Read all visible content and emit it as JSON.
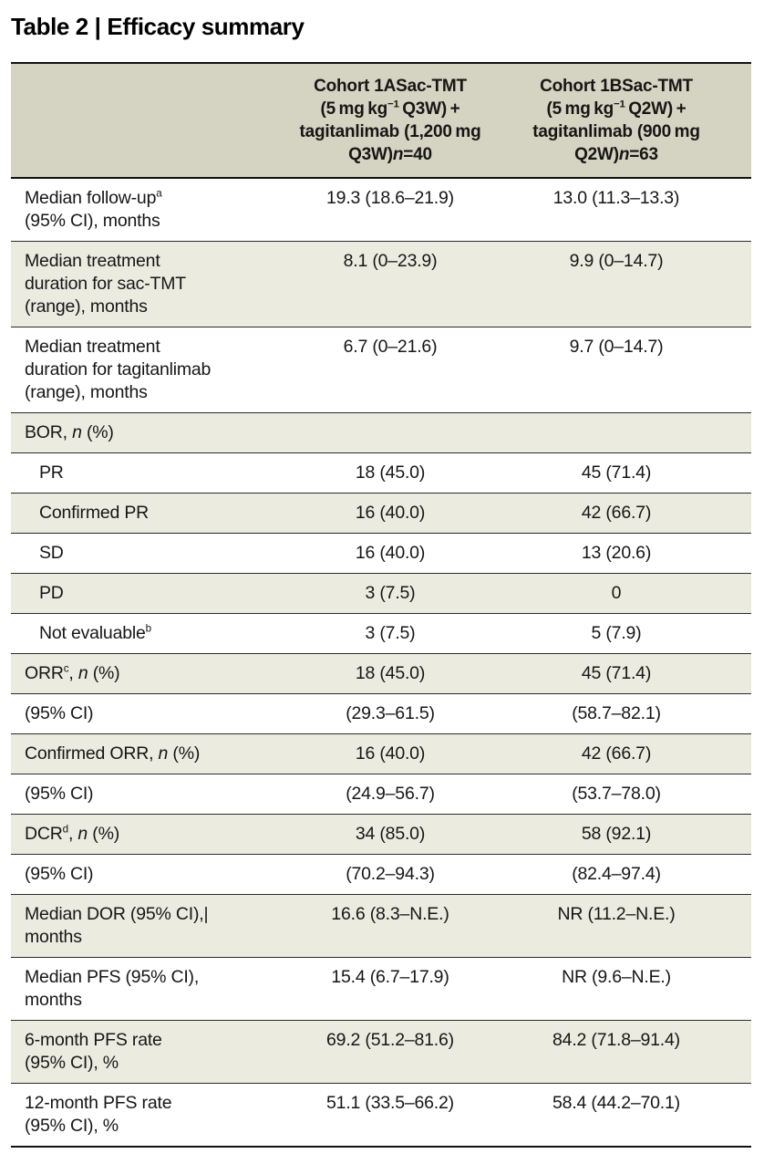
{
  "title": {
    "text": "Table 2 | Efficacy summary"
  },
  "colors": {
    "header_bg": "#d5d3c1",
    "shaded_row_bg": "#ecebe0",
    "rule": "#111111",
    "rule_thin": "#2b2b2b",
    "text": "#161616"
  },
  "table": {
    "header": {
      "col1": "",
      "cohort_1a": [
        {
          "t": "Cohort 1ASac-TMT"
        },
        {
          "br": true
        },
        {
          "t": "(5 mg kg"
        },
        {
          "t": "−1",
          "sup": true
        },
        {
          "t": " Q3W) +"
        },
        {
          "br": true
        },
        {
          "t": "tagitanlimab (1,200 mg"
        },
        {
          "br": true
        },
        {
          "t": "Q3W)"
        },
        {
          "t": "n",
          "i": true
        },
        {
          "t": "=40"
        }
      ],
      "cohort_1b": [
        {
          "t": "Cohort 1BSac-TMT"
        },
        {
          "br": true
        },
        {
          "t": "(5 mg kg"
        },
        {
          "t": "−1",
          "sup": true
        },
        {
          "t": " Q2W) +"
        },
        {
          "br": true
        },
        {
          "t": "tagitanlimab (900 mg"
        },
        {
          "br": true
        },
        {
          "t": "Q2W)"
        },
        {
          "t": "n",
          "i": true
        },
        {
          "t": "=63"
        }
      ]
    },
    "rows": [
      {
        "key": "median-follow-up",
        "shaded": false,
        "indent": false,
        "label": [
          {
            "t": "Median follow-up"
          },
          {
            "t": "a",
            "sup": true
          },
          {
            "br": true
          },
          {
            "t": "(95% CI), months"
          }
        ],
        "values": [
          "19.3 (18.6–21.9)",
          "13.0 (11.3–13.3)"
        ]
      },
      {
        "key": "median-treatment-duration-sac-tmt",
        "shaded": true,
        "indent": false,
        "label": [
          {
            "t": "Median treatment"
          },
          {
            "br": true
          },
          {
            "t": "duration for sac-TMT"
          },
          {
            "br": true
          },
          {
            "t": "(range), months"
          }
        ],
        "values": [
          "8.1 (0–23.9)",
          "9.9 (0–14.7)"
        ]
      },
      {
        "key": "median-treatment-duration-tagitanlimab",
        "shaded": false,
        "indent": false,
        "label": [
          {
            "t": "Median treatment"
          },
          {
            "br": true
          },
          {
            "t": "duration for tagitanlimab"
          },
          {
            "br": true
          },
          {
            "t": "(range), months"
          }
        ],
        "values": [
          "6.7 (0–21.6)",
          "9.7 (0–14.7)"
        ]
      },
      {
        "key": "bor",
        "shaded": true,
        "indent": false,
        "label": [
          {
            "t": "BOR, "
          },
          {
            "t": "n",
            "i": true
          },
          {
            "t": " (%)"
          }
        ],
        "values": [
          "",
          ""
        ]
      },
      {
        "key": "pr",
        "shaded": false,
        "indent": true,
        "label": [
          {
            "t": "PR"
          }
        ],
        "values": [
          "18 (45.0)",
          "45 (71.4)"
        ]
      },
      {
        "key": "confirmed-pr",
        "shaded": true,
        "indent": true,
        "label": [
          {
            "t": "Confirmed PR"
          }
        ],
        "values": [
          "16 (40.0)",
          "42 (66.7)"
        ]
      },
      {
        "key": "sd",
        "shaded": false,
        "indent": true,
        "label": [
          {
            "t": "SD"
          }
        ],
        "values": [
          "16 (40.0)",
          "13 (20.6)"
        ]
      },
      {
        "key": "pd",
        "shaded": true,
        "indent": true,
        "label": [
          {
            "t": "PD"
          }
        ],
        "values": [
          "3 (7.5)",
          "0"
        ]
      },
      {
        "key": "not-evaluable",
        "shaded": false,
        "indent": true,
        "label": [
          {
            "t": "Not evaluable"
          },
          {
            "t": "b",
            "sup": true
          }
        ],
        "values": [
          "3 (7.5)",
          "5 (7.9)"
        ]
      },
      {
        "key": "orr",
        "shaded": true,
        "indent": false,
        "label": [
          {
            "t": "ORR"
          },
          {
            "t": "c",
            "sup": true
          },
          {
            "t": ", "
          },
          {
            "t": "n",
            "i": true
          },
          {
            "t": " (%)"
          }
        ],
        "values": [
          "18 (45.0)",
          "45 (71.4)"
        ]
      },
      {
        "key": "orr-ci",
        "shaded": false,
        "indent": false,
        "label": [
          {
            "t": "(95% CI)"
          }
        ],
        "values": [
          "(29.3–61.5)",
          "(58.7–82.1)"
        ]
      },
      {
        "key": "confirmed-orr",
        "shaded": true,
        "indent": false,
        "label": [
          {
            "t": "Confirmed ORR, "
          },
          {
            "t": "n",
            "i": true
          },
          {
            "t": " (%)"
          }
        ],
        "values": [
          "16 (40.0)",
          "42 (66.7)"
        ]
      },
      {
        "key": "confirmed-orr-ci",
        "shaded": false,
        "indent": false,
        "label": [
          {
            "t": "(95% CI)"
          }
        ],
        "values": [
          "(24.9–56.7)",
          "(53.7–78.0)"
        ]
      },
      {
        "key": "dcr",
        "shaded": true,
        "indent": false,
        "label": [
          {
            "t": "DCR"
          },
          {
            "t": "d",
            "sup": true
          },
          {
            "t": ", "
          },
          {
            "t": "n",
            "i": true
          },
          {
            "t": " (%)"
          }
        ],
        "values": [
          "34 (85.0)",
          "58 (92.1)"
        ]
      },
      {
        "key": "dcr-ci",
        "shaded": false,
        "indent": false,
        "label": [
          {
            "t": "(95% CI)"
          }
        ],
        "values": [
          "(70.2–94.3)",
          "(82.4–97.4)"
        ]
      },
      {
        "key": "median-dor",
        "shaded": true,
        "indent": false,
        "label": [
          {
            "t": "Median DOR (95% CI),|"
          },
          {
            "br": true
          },
          {
            "t": "months"
          }
        ],
        "values": [
          "16.6 (8.3–N.E.)",
          "NR (11.2–N.E.)"
        ]
      },
      {
        "key": "median-pfs",
        "shaded": false,
        "indent": false,
        "label": [
          {
            "t": "Median PFS (95% CI),"
          },
          {
            "br": true
          },
          {
            "t": "months"
          }
        ],
        "values": [
          "15.4 (6.7–17.9)",
          "NR (9.6–N.E.)"
        ]
      },
      {
        "key": "pfs-rate-6-month",
        "shaded": true,
        "indent": false,
        "label": [
          {
            "t": "6-month PFS rate"
          },
          {
            "br": true
          },
          {
            "t": "(95% CI), %"
          }
        ],
        "values": [
          "69.2 (51.2–81.6)",
          "84.2 (71.8–91.4)"
        ]
      },
      {
        "key": "pfs-rate-12-month",
        "shaded": false,
        "indent": false,
        "label": [
          {
            "t": "12-month PFS rate"
          },
          {
            "br": true
          },
          {
            "t": "(95% CI), %"
          }
        ],
        "values": [
          "51.1 (33.5–66.2)",
          "58.4 (44.2–70.1)"
        ]
      }
    ]
  }
}
